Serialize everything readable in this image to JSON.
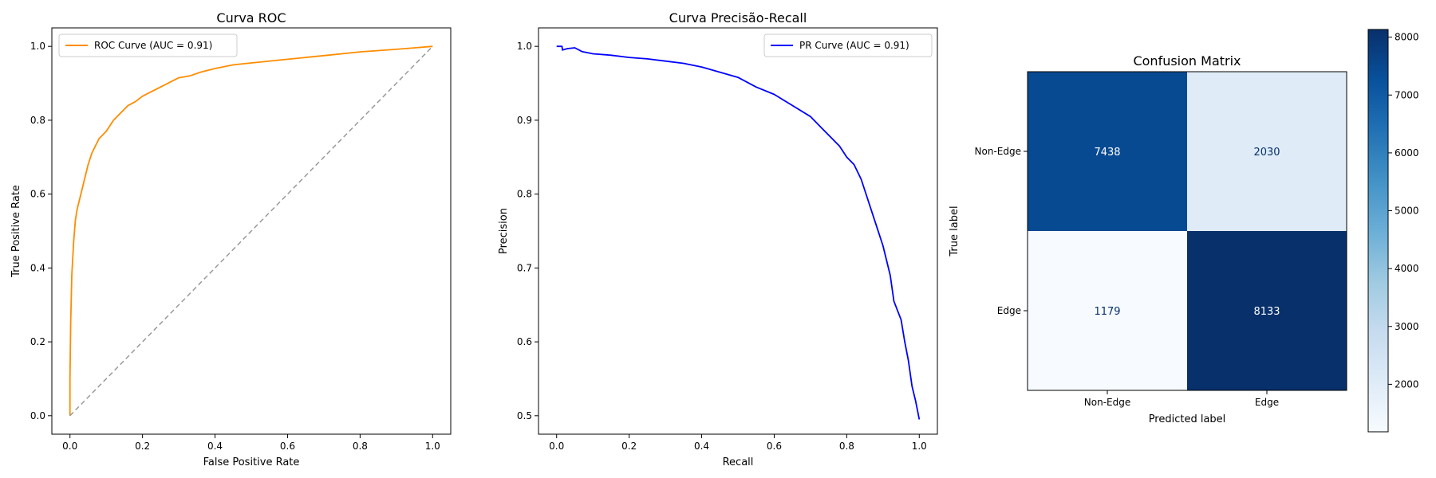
{
  "chart_data": [
    {
      "type": "line",
      "title": "Curva ROC",
      "xlabel": "False Positive Rate",
      "ylabel": "True Positive Rate",
      "xlim": [
        -0.05,
        1.05
      ],
      "ylim": [
        -0.05,
        1.05
      ],
      "xticks": [
        0.0,
        0.2,
        0.4,
        0.6,
        0.8,
        1.0
      ],
      "yticks": [
        0.0,
        0.2,
        0.4,
        0.6,
        0.8,
        1.0
      ],
      "tick_labels": [
        "0.0",
        "0.2",
        "0.4",
        "0.6",
        "0.8",
        "1.0"
      ],
      "grid": false,
      "legend": "upper-left",
      "series": [
        {
          "name": "ROC Curve (AUC = 0.91)",
          "color": "#ff8c00",
          "x": [
            0.0,
            0.0,
            0.002,
            0.005,
            0.01,
            0.015,
            0.02,
            0.03,
            0.04,
            0.05,
            0.06,
            0.07,
            0.08,
            0.1,
            0.12,
            0.14,
            0.16,
            0.18,
            0.2,
            0.22,
            0.25,
            0.28,
            0.3,
            0.33,
            0.36,
            0.4,
            0.45,
            0.5,
            0.6,
            0.7,
            0.8,
            0.9,
            1.0
          ],
          "y": [
            0.0,
            0.1,
            0.25,
            0.38,
            0.47,
            0.53,
            0.56,
            0.6,
            0.64,
            0.68,
            0.71,
            0.73,
            0.75,
            0.77,
            0.8,
            0.82,
            0.84,
            0.85,
            0.865,
            0.875,
            0.89,
            0.905,
            0.915,
            0.92,
            0.93,
            0.94,
            0.95,
            0.955,
            0.965,
            0.975,
            0.985,
            0.992,
            1.0
          ]
        },
        {
          "name": "",
          "color": "#999999",
          "dashed": true,
          "x": [
            0.0,
            1.0
          ],
          "y": [
            0.0,
            1.0
          ]
        }
      ]
    },
    {
      "type": "line",
      "title": "Curva Precisão-Recall",
      "xlabel": "Recall",
      "ylabel": "Precision",
      "xlim": [
        -0.05,
        1.05
      ],
      "ylim": [
        0.475,
        1.025
      ],
      "xticks": [
        0.0,
        0.2,
        0.4,
        0.6,
        0.8,
        1.0
      ],
      "xtick_labels": [
        "0.0",
        "0.2",
        "0.4",
        "0.6",
        "0.8",
        "1.0"
      ],
      "yticks": [
        0.5,
        0.6,
        0.7,
        0.8,
        0.9,
        1.0
      ],
      "ytick_labels": [
        "0.5",
        "0.6",
        "0.7",
        "0.8",
        "0.9",
        "1.0"
      ],
      "grid": false,
      "legend": "upper-right",
      "series": [
        {
          "name": "PR Curve (AUC = 0.91)",
          "color": "#0000ff",
          "x": [
            0.0,
            0.015,
            0.016,
            0.03,
            0.05,
            0.07,
            0.1,
            0.15,
            0.2,
            0.25,
            0.3,
            0.35,
            0.4,
            0.45,
            0.5,
            0.55,
            0.6,
            0.65,
            0.7,
            0.73,
            0.76,
            0.78,
            0.8,
            0.82,
            0.84,
            0.86,
            0.88,
            0.9,
            0.92,
            0.93,
            0.95,
            0.96,
            0.97,
            0.98,
            0.99,
            1.0
          ],
          "y": [
            1.0,
            1.0,
            0.995,
            0.997,
            0.998,
            0.993,
            0.99,
            0.988,
            0.985,
            0.983,
            0.98,
            0.977,
            0.972,
            0.965,
            0.958,
            0.945,
            0.935,
            0.92,
            0.905,
            0.89,
            0.875,
            0.865,
            0.85,
            0.84,
            0.82,
            0.79,
            0.76,
            0.73,
            0.69,
            0.655,
            0.63,
            0.6,
            0.575,
            0.54,
            0.52,
            0.495
          ]
        }
      ]
    },
    {
      "type": "heatmap",
      "title": "Confusion Matrix",
      "xlabel": "Predicted label",
      "ylabel": "True label",
      "x_categories": [
        "Non-Edge",
        "Edge"
      ],
      "y_categories": [
        "Non-Edge",
        "Edge"
      ],
      "values": [
        [
          7438,
          2030
        ],
        [
          1179,
          8133
        ]
      ],
      "colormap": "Blues",
      "colorbar": {
        "ticks": [
          2000,
          3000,
          4000,
          5000,
          6000,
          7000,
          8000
        ],
        "tick_labels": [
          "2000",
          "3000",
          "4000",
          "5000",
          "6000",
          "7000",
          "8000"
        ],
        "range": [
          1179,
          8133
        ]
      }
    }
  ]
}
